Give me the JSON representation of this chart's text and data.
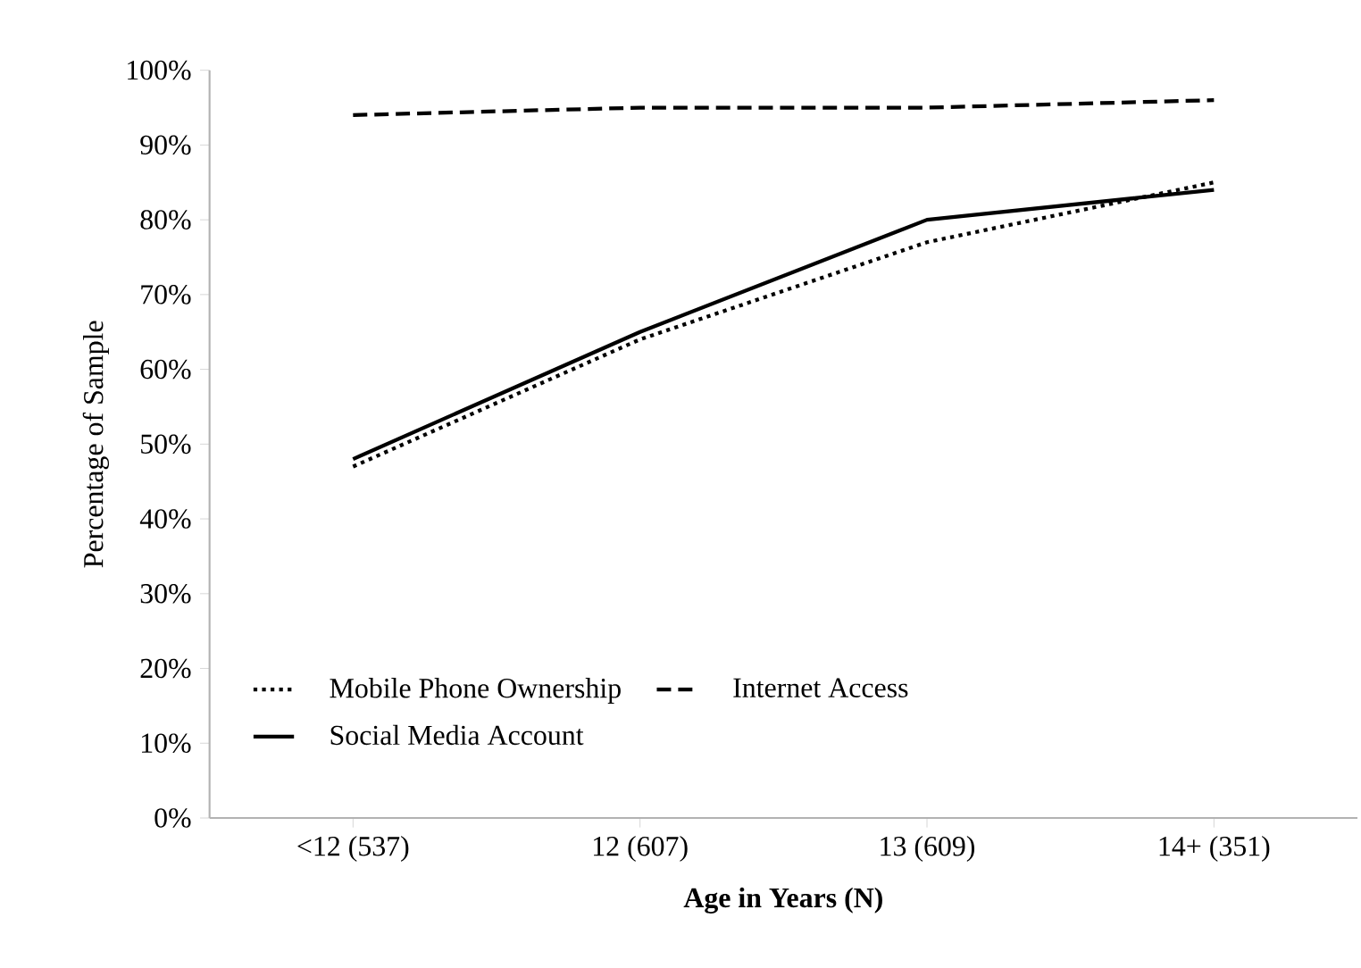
{
  "chart_data": {
    "type": "line",
    "xlabel": "Age in Years (N)",
    "ylabel": "Percentage of Sample",
    "categories": [
      "<12 (537)",
      "12 (607)",
      "13 (609)",
      "14+ (351)"
    ],
    "series": [
      {
        "name": "Mobile Phone Ownership",
        "color": "#000000",
        "line_style": "dotted",
        "values": [
          47,
          64,
          77,
          85
        ]
      },
      {
        "name": "Internet Access",
        "color": "#000000",
        "line_style": "dashed",
        "values": [
          94,
          95,
          95,
          96
        ]
      },
      {
        "name": "Social Media Account",
        "color": "#000000",
        "line_style": "solid",
        "values": [
          48,
          65,
          80,
          84
        ]
      }
    ],
    "ylim": [
      0,
      100
    ],
    "yticks": [
      {
        "value": 0,
        "label": "0%"
      },
      {
        "value": 10,
        "label": "10%"
      },
      {
        "value": 20,
        "label": "20%"
      },
      {
        "value": 30,
        "label": "30%"
      },
      {
        "value": 40,
        "label": "40%"
      },
      {
        "value": 50,
        "label": "50%"
      },
      {
        "value": 60,
        "label": "60%"
      },
      {
        "value": 70,
        "label": "70%"
      },
      {
        "value": 80,
        "label": "80%"
      },
      {
        "value": 90,
        "label": "90%"
      },
      {
        "value": 100,
        "label": "100%"
      }
    ],
    "grid": false,
    "legend": "bottom",
    "marker": "none"
  }
}
